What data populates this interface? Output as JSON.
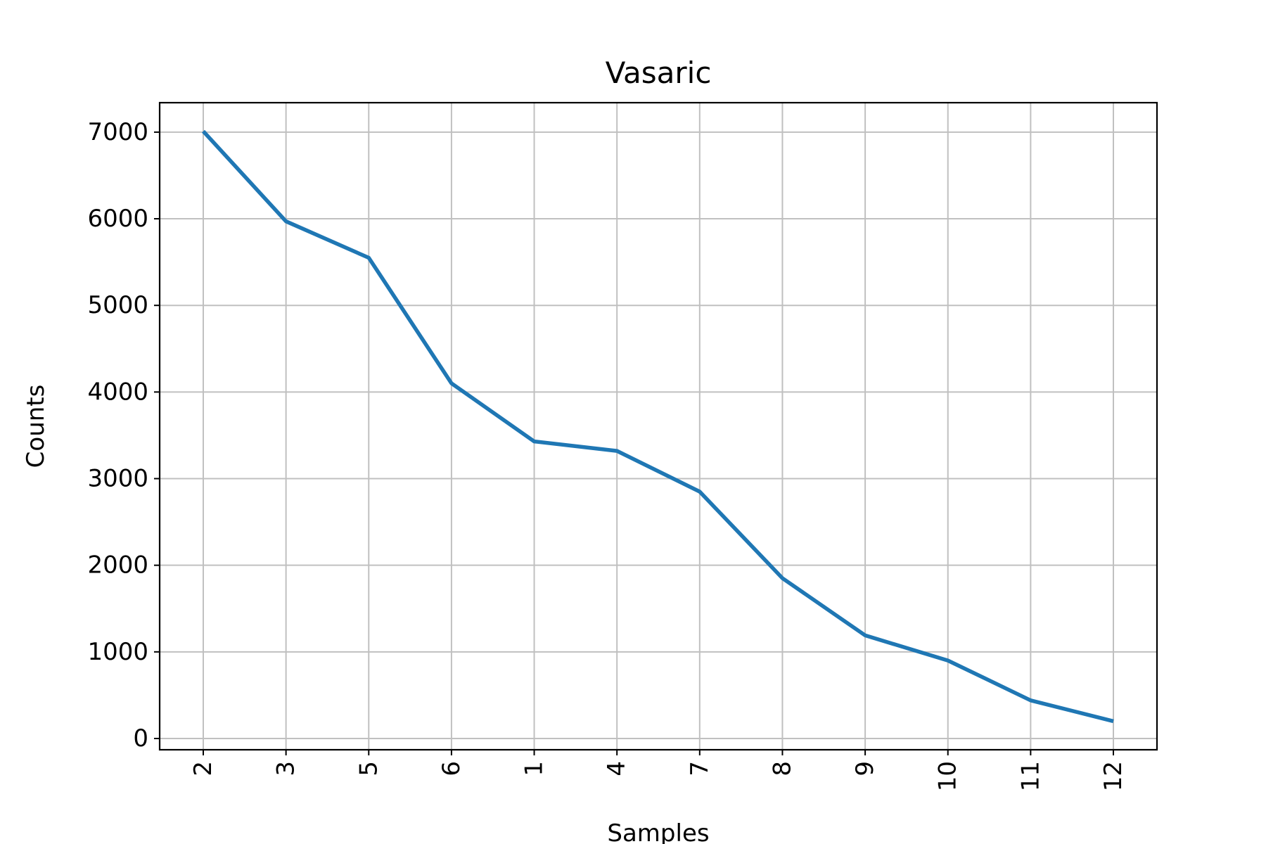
{
  "chart_data": {
    "type": "line",
    "title": "Vasaric",
    "xlabel": "Samples",
    "ylabel": "Counts",
    "categories": [
      "2",
      "3",
      "5",
      "6",
      "1",
      "4",
      "7",
      "8",
      "9",
      "10",
      "11",
      "12"
    ],
    "series": [
      {
        "values": [
          7010,
          5970,
          5550,
          4100,
          3430,
          3320,
          2850,
          1850,
          1190,
          900,
          440,
          200
        ]
      }
    ],
    "ylim": [
      -130,
      7340
    ],
    "yticks": [
      0,
      1000,
      2000,
      3000,
      4000,
      5000,
      6000,
      7000
    ],
    "ytick_labels": [
      "0",
      "1000",
      "2000",
      "3000",
      "4000",
      "5000",
      "6000",
      "7000"
    ],
    "grid": true,
    "colors": {
      "line": "#1f77b4",
      "grid": "#c0c0c0",
      "axes": "#000000"
    }
  }
}
